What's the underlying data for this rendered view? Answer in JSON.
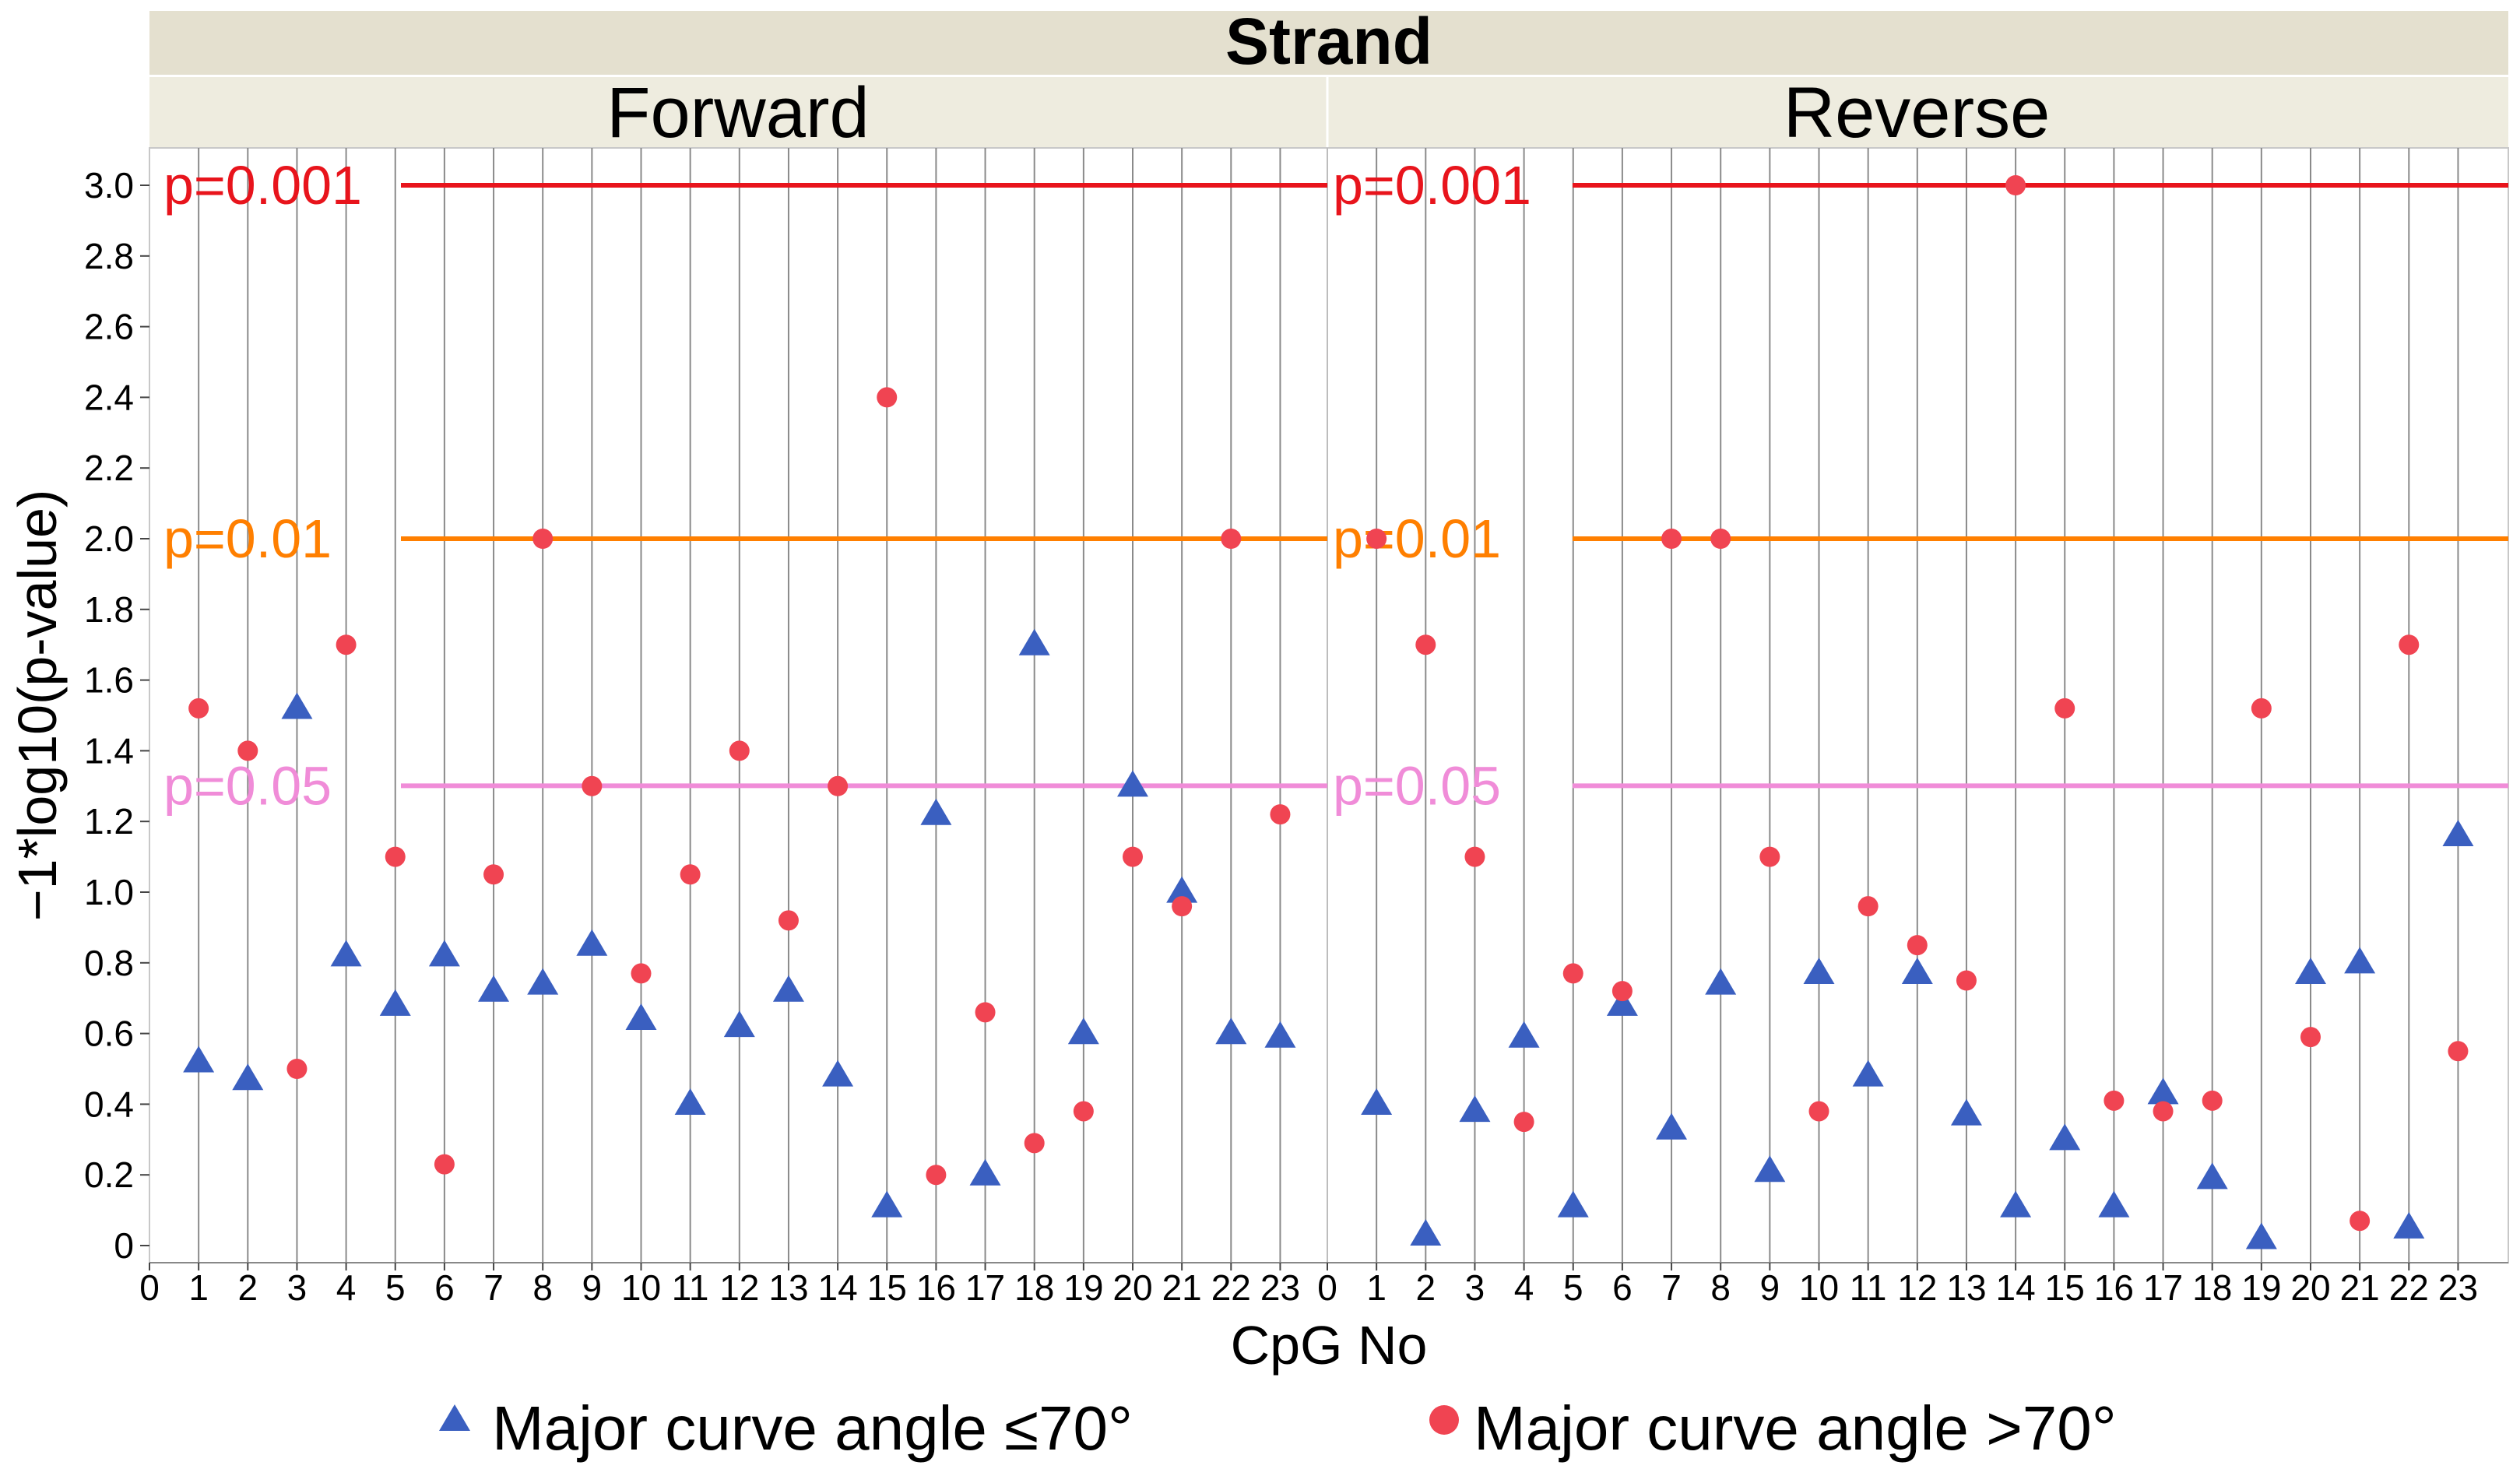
{
  "chart_data": {
    "type": "scatter",
    "title": "Strand",
    "panels": [
      "Forward",
      "Reverse"
    ],
    "xlabel": "CpG No",
    "ylabel": "−1*log10(p-value)",
    "xlim": [
      0,
      24
    ],
    "ylim": [
      0,
      3.0
    ],
    "xticks": [
      0,
      1,
      2,
      3,
      4,
      5,
      6,
      7,
      8,
      9,
      10,
      11,
      12,
      13,
      14,
      15,
      16,
      17,
      18,
      19,
      20,
      21,
      22,
      23
    ],
    "yticks": [
      "0",
      "0.2",
      "0.4",
      "0.6",
      "0.8",
      "1.0",
      "1.2",
      "1.4",
      "1.6",
      "1.8",
      "2.0",
      "2.2",
      "2.4",
      "2.6",
      "2.8",
      "3.0"
    ],
    "thresholds": [
      {
        "label": "p=0.001",
        "value": 3.0,
        "color": "#e8141c"
      },
      {
        "label": "p=0.01",
        "value": 2.0,
        "color": "#ff7f00"
      },
      {
        "label": "p=0.05",
        "value": 1.301,
        "color": "#f08cd8"
      }
    ],
    "series": [
      {
        "name": "Major curve angle ≤70°",
        "marker": "triangle",
        "color": "#3a5fc0",
        "forward": [
          0.52,
          0.47,
          1.52,
          0.82,
          0.68,
          0.82,
          0.72,
          0.74,
          0.85,
          0.64,
          0.4,
          0.62,
          0.72,
          0.48,
          0.11,
          1.22,
          0.2,
          1.7,
          0.6,
          1.3,
          1.0,
          0.6,
          0.59
        ],
        "reverse": [
          0.4,
          0.03,
          0.38,
          0.59,
          0.11,
          0.68,
          0.33,
          0.74,
          0.21,
          0.77,
          0.48,
          0.77,
          0.37,
          0.11,
          0.3,
          0.11,
          0.43,
          0.19,
          0.02,
          0.77,
          0.8,
          0.05,
          1.16
        ]
      },
      {
        "name": "Major curve angle >70°",
        "marker": "circle",
        "color": "#f04452",
        "forward": [
          1.52,
          1.4,
          0.5,
          1.7,
          1.1,
          0.23,
          1.05,
          2.0,
          1.3,
          0.77,
          1.05,
          1.4,
          0.92,
          1.3,
          2.4,
          0.2,
          0.66,
          0.29,
          0.38,
          1.1,
          0.96,
          2.0,
          1.22
        ],
        "reverse": [
          2.0,
          1.7,
          1.1,
          0.35,
          0.77,
          0.72,
          2.0,
          2.0,
          1.1,
          0.38,
          0.96,
          0.85,
          0.75,
          3.0,
          1.52,
          0.41,
          0.38,
          0.41,
          1.52,
          0.59,
          0.07,
          1.7,
          0.55
        ]
      }
    ]
  }
}
